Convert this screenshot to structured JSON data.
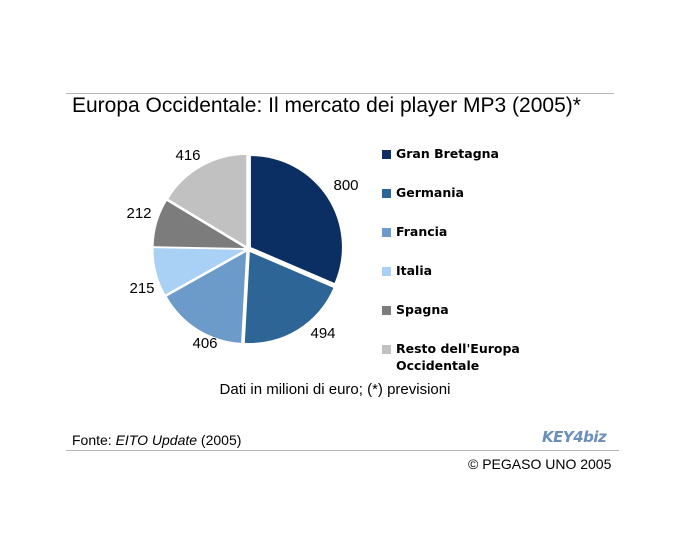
{
  "chart_data": {
    "type": "pie",
    "title": "Europa Occidentale: Il mercato dei player MP3 (2005)*",
    "categories": [
      "Gran Bretagna",
      "Germania",
      "Francia",
      "Italia",
      "Spagna",
      "Resto dell'Europa\nOccidentale"
    ],
    "values": [
      800,
      494,
      406,
      215,
      212,
      416
    ],
    "value_labels": [
      "800",
      "494",
      "406",
      "215",
      "212",
      "416"
    ],
    "colors": [
      "#0b2f63",
      "#2e6597",
      "#6c9ac9",
      "#a9d1f5",
      "#7c7c7c",
      "#c1c1c1"
    ],
    "legend_placement": "right",
    "note": "Dati in milioni di euro; (*) previsioni"
  },
  "footer": {
    "source_prefix": "Fonte: ",
    "source_title": "EITO Update",
    "source_suffix": " (2005)",
    "logo_text": "KEY4biz",
    "copyright": "© PEGASO UNO 2005"
  }
}
